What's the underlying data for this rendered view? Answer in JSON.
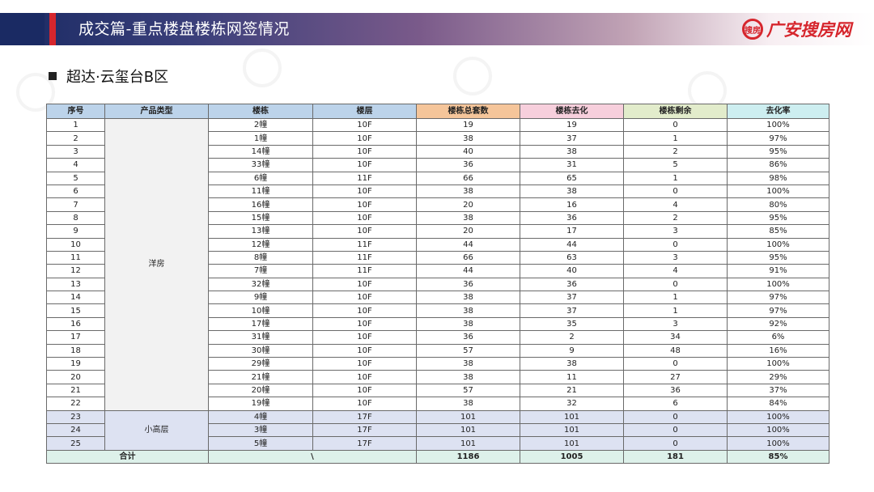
{
  "header": {
    "title": "成交篇-重点楼盘楼栋网签情况",
    "logo_text": "广安搜房网",
    "logo_mark": "搜房",
    "brand_color": "#d6262d",
    "bar_color": "#1a2a63"
  },
  "section": {
    "title": "超达·云玺台B区"
  },
  "table": {
    "headers": [
      "序号",
      "产品类型",
      "楼栋",
      "楼层",
      "楼栋总套数",
      "楼栋去化",
      "楼栋剩余",
      "去化率"
    ],
    "groups": [
      {
        "type": "洋房",
        "rows": [
          [
            "1",
            "2幢",
            "10F",
            "19",
            "19",
            "0",
            "100%"
          ],
          [
            "2",
            "1幢",
            "10F",
            "38",
            "37",
            "1",
            "97%"
          ],
          [
            "3",
            "14幢",
            "10F",
            "40",
            "38",
            "2",
            "95%"
          ],
          [
            "4",
            "33幢",
            "10F",
            "36",
            "31",
            "5",
            "86%"
          ],
          [
            "5",
            "6幢",
            "11F",
            "66",
            "65",
            "1",
            "98%"
          ],
          [
            "6",
            "11幢",
            "10F",
            "38",
            "38",
            "0",
            "100%"
          ],
          [
            "7",
            "16幢",
            "10F",
            "20",
            "16",
            "4",
            "80%"
          ],
          [
            "8",
            "15幢",
            "10F",
            "38",
            "36",
            "2",
            "95%"
          ],
          [
            "9",
            "13幢",
            "10F",
            "20",
            "17",
            "3",
            "85%"
          ],
          [
            "10",
            "12幢",
            "11F",
            "44",
            "44",
            "0",
            "100%"
          ],
          [
            "11",
            "8幢",
            "11F",
            "66",
            "63",
            "3",
            "95%"
          ],
          [
            "12",
            "7幢",
            "11F",
            "44",
            "40",
            "4",
            "91%"
          ],
          [
            "13",
            "32幢",
            "10F",
            "36",
            "36",
            "0",
            "100%"
          ],
          [
            "14",
            "9幢",
            "10F",
            "38",
            "37",
            "1",
            "97%"
          ],
          [
            "15",
            "10幢",
            "10F",
            "38",
            "37",
            "1",
            "97%"
          ],
          [
            "16",
            "17幢",
            "10F",
            "38",
            "35",
            "3",
            "92%"
          ],
          [
            "17",
            "31幢",
            "10F",
            "36",
            "2",
            "34",
            "6%"
          ],
          [
            "18",
            "30幢",
            "10F",
            "57",
            "9",
            "48",
            "16%"
          ],
          [
            "19",
            "29幢",
            "10F",
            "38",
            "38",
            "0",
            "100%"
          ],
          [
            "20",
            "21幢",
            "10F",
            "38",
            "11",
            "27",
            "29%"
          ],
          [
            "21",
            "20幢",
            "10F",
            "57",
            "21",
            "36",
            "37%"
          ],
          [
            "22",
            "19幢",
            "10F",
            "38",
            "32",
            "6",
            "84%"
          ]
        ]
      },
      {
        "type": "小高层",
        "rows": [
          [
            "23",
            "4幢",
            "17F",
            "101",
            "101",
            "0",
            "100%"
          ],
          [
            "24",
            "3幢",
            "17F",
            "101",
            "101",
            "0",
            "100%"
          ],
          [
            "25",
            "5幢",
            "17F",
            "101",
            "101",
            "0",
            "100%"
          ]
        ]
      }
    ],
    "total": {
      "label": "合计",
      "building": "\\",
      "total_units": "1186",
      "sold": "1005",
      "remaining": "181",
      "rate": "85%"
    }
  }
}
